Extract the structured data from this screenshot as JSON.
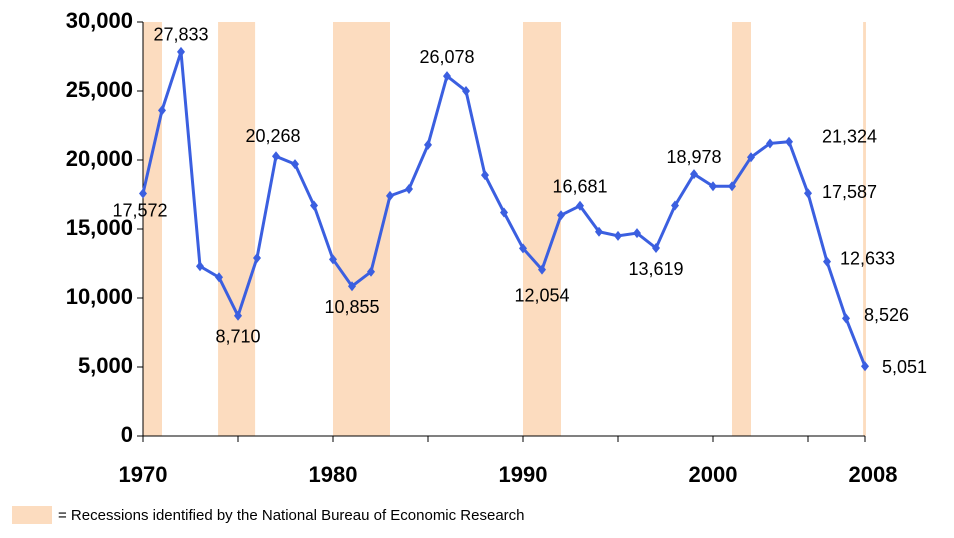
{
  "chart_data": {
    "type": "line",
    "x": [
      1970,
      1971,
      1972,
      1973,
      1974,
      1975,
      1976,
      1977,
      1978,
      1979,
      1980,
      1981,
      1982,
      1983,
      1984,
      1985,
      1986,
      1987,
      1988,
      1989,
      1990,
      1991,
      1992,
      1993,
      1994,
      1995,
      1996,
      1997,
      1998,
      1999,
      2000,
      2001,
      2002,
      2003,
      2004,
      2005,
      2006,
      2007,
      2008
    ],
    "series": [
      {
        "color": "#3b5fe0",
        "values": [
          17572,
          23600,
          27833,
          12300,
          11500,
          8710,
          12900,
          20268,
          19700,
          16700,
          12800,
          10855,
          11900,
          17400,
          17900,
          21100,
          26078,
          25000,
          18900,
          16200,
          13600,
          12054,
          16000,
          16681,
          14800,
          14500,
          14700,
          13619,
          16700,
          18978,
          18100,
          18100,
          20200,
          21200,
          21324,
          17587,
          12633,
          8526,
          5051
        ],
        "value_labels": [
          "17,572",
          null,
          "27,833",
          null,
          null,
          "8,710",
          null,
          "20,268",
          null,
          null,
          null,
          "10,855",
          null,
          null,
          null,
          null,
          "26,078",
          null,
          null,
          null,
          null,
          "12,054",
          null,
          "16,681",
          null,
          null,
          null,
          "13,619",
          null,
          "18,978",
          null,
          null,
          null,
          null,
          "21,324",
          "17,587",
          "12,633",
          "8,526",
          "5,051"
        ]
      }
    ],
    "xlim": [
      1970,
      2008
    ],
    "xticks": [
      1970,
      1980,
      1990,
      2000,
      2008
    ],
    "xminor_ticks": [
      1975,
      1985,
      1995,
      2005
    ],
    "ylim": [
      0,
      30000
    ],
    "yticks": [
      0,
      {
        "value": 5000,
        "label": "5,000"
      },
      {
        "value": 10000,
        "label": "10,000"
      },
      {
        "value": 15000,
        "label": "15,000"
      },
      {
        "value": 20000,
        "label": "20,000"
      },
      {
        "value": 25000,
        "label": "25,000"
      },
      {
        "value": 30000,
        "label": "30,000"
      }
    ],
    "recessions": [
      [
        1970,
        1971
      ],
      [
        1973.95,
        1975.9
      ],
      [
        1980,
        1983
      ],
      [
        1990,
        1992
      ],
      [
        2001,
        2002
      ],
      [
        2007.9,
        2008.05
      ]
    ],
    "recession_color": "#fcdcbf",
    "legend_label": "= Recessions identified by the National Bureau of Economic Research"
  }
}
